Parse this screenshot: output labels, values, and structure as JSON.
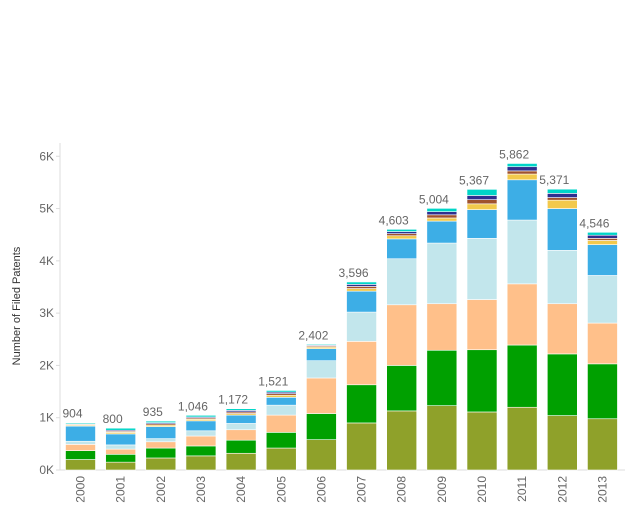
{
  "chart_data": {
    "type": "bar",
    "stacked": true,
    "title": "",
    "xlabel": "",
    "ylabel": "Number of Filed Patents",
    "ylim": [
      0,
      6200
    ],
    "yticks": [
      0,
      1000,
      2000,
      3000,
      4000,
      5000,
      6000
    ],
    "ytick_labels": [
      "0K",
      "1K",
      "2K",
      "3K",
      "4K",
      "5K",
      "6K"
    ],
    "grid": false,
    "categories": [
      "2000",
      "2001",
      "2002",
      "2003",
      "2004",
      "2005",
      "2006",
      "2007",
      "2008",
      "2009",
      "2010",
      "2011",
      "2012",
      "2013"
    ],
    "totals": [
      904,
      800,
      935,
      1046,
      1172,
      1521,
      2402,
      3596,
      4603,
      5004,
      5367,
      5862,
      5371,
      4546
    ],
    "total_labels": [
      "904",
      "800",
      "935",
      "1,046",
      "1,172",
      "1,521",
      "2,402",
      "3,596",
      "4,603",
      "5,004",
      "5,367",
      "5,862",
      "5,371",
      "4,546"
    ],
    "series": [
      {
        "color": "#8fa12a",
        "values": [
          200,
          150,
          230,
          270,
          320,
          420,
          580,
          900,
          1130,
          1230,
          1110,
          1200,
          1040,
          980
        ]
      },
      {
        "color": "#00a000",
        "values": [
          170,
          150,
          190,
          190,
          250,
          300,
          500,
          730,
          870,
          1060,
          1190,
          1190,
          1180,
          1050
        ]
      },
      {
        "color": "#ffc08a",
        "values": [
          120,
          100,
          120,
          190,
          200,
          330,
          680,
          830,
          1160,
          890,
          960,
          1170,
          960,
          780
        ]
      },
      {
        "color": "#c2e6ec",
        "values": [
          60,
          80,
          60,
          100,
          120,
          190,
          330,
          560,
          880,
          1160,
          1170,
          1220,
          1020,
          910
        ]
      },
      {
        "color": "#3daee6",
        "values": [
          290,
          210,
          230,
          190,
          160,
          150,
          230,
          400,
          380,
          420,
          550,
          770,
          800,
          590
        ]
      },
      {
        "color": "#f2c94c",
        "values": [
          20,
          30,
          30,
          30,
          30,
          40,
          30,
          50,
          60,
          60,
          110,
          110,
          160,
          80
        ]
      },
      {
        "color": "#a0522d",
        "values": [
          14,
          20,
          25,
          24,
          30,
          30,
          20,
          40,
          40,
          60,
          80,
          60,
          50,
          40
        ]
      },
      {
        "color": "#2f2f8f",
        "values": [
          10,
          20,
          20,
          20,
          30,
          30,
          15,
          40,
          40,
          60,
          80,
          80,
          80,
          60
        ]
      },
      {
        "color": "#00d5c8",
        "values": [
          20,
          40,
          30,
          32,
          32,
          31,
          17,
          46,
          43,
          64,
          117,
          62,
          81,
          56
        ]
      }
    ]
  }
}
